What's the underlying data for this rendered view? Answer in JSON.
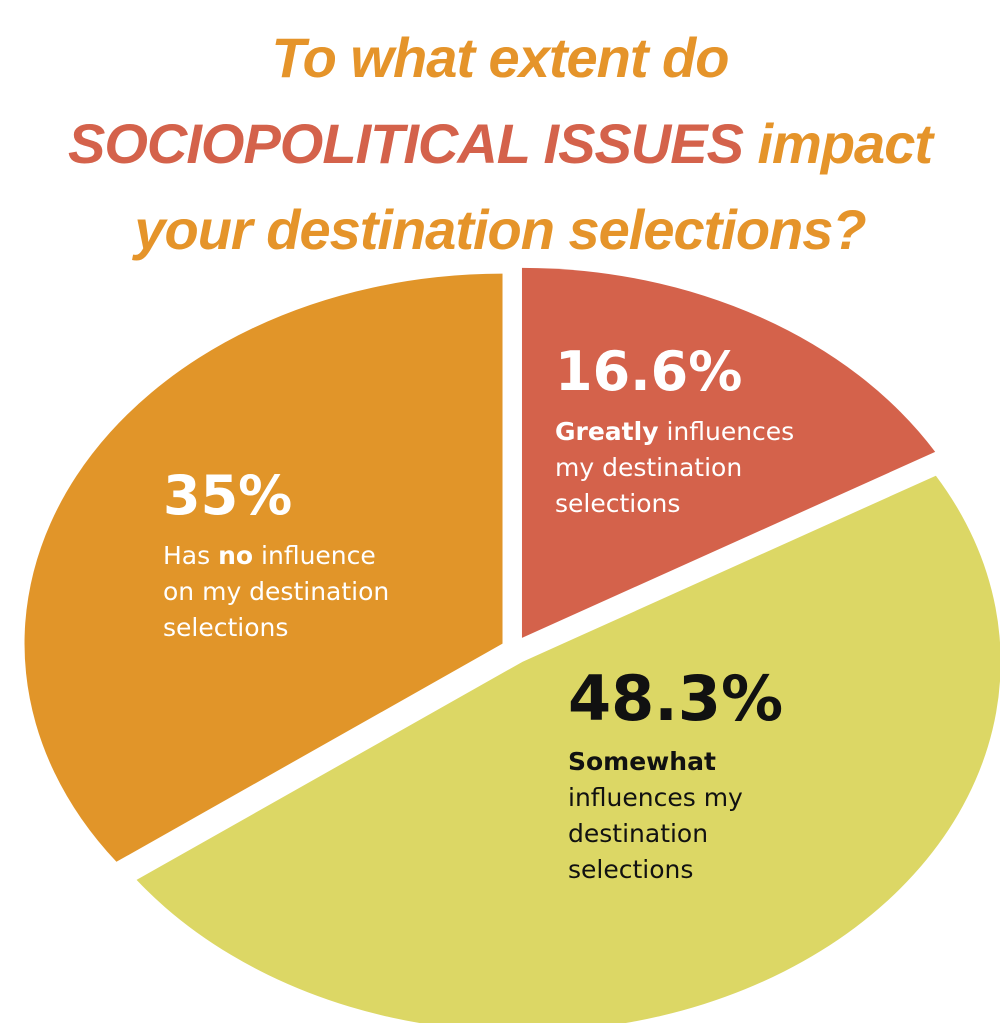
{
  "chart_data": {
    "type": "pie",
    "title_lines": [
      [
        {
          "text": "To what extent do",
          "accent": false
        }
      ],
      [
        {
          "text": "SOCIOPOLITICAL ISSUES",
          "accent": true
        },
        {
          "text": " impact",
          "accent": false
        }
      ],
      [
        {
          "text": "your destination selections?",
          "accent": false
        }
      ]
    ],
    "slices": [
      {
        "value": 16.6,
        "label": "16.6%",
        "color": "#d4624b",
        "text_color": "#ffffff",
        "description": [
          [
            {
              "text": "Greatly",
              "bold": true
            },
            {
              "text": " influences",
              "bold": false
            }
          ],
          [
            {
              "text": "my destination",
              "bold": false
            }
          ],
          [
            {
              "text": "selections",
              "bold": false
            }
          ]
        ]
      },
      {
        "value": 48.3,
        "label": "48.3%",
        "color": "#dcd765",
        "text_color": "#111111",
        "description": [
          [
            {
              "text": "Somewhat",
              "bold": true
            }
          ],
          [
            {
              "text": "influences my",
              "bold": false
            }
          ],
          [
            {
              "text": "destination",
              "bold": false
            }
          ],
          [
            {
              "text": "selections",
              "bold": false
            }
          ]
        ]
      },
      {
        "value": 35,
        "label": "35%",
        "color": "#e19529",
        "text_color": "#ffffff",
        "description": [
          [
            {
              "text": "Has ",
              "bold": false
            },
            {
              "text": "no",
              "bold": true
            },
            {
              "text": " influence",
              "bold": false
            }
          ],
          [
            {
              "text": "on my destination",
              "bold": false
            }
          ],
          [
            {
              "text": "selections",
              "bold": false
            }
          ]
        ]
      }
    ],
    "colors": {
      "title": "#e5942a",
      "title_accent": "#d4624b"
    }
  }
}
